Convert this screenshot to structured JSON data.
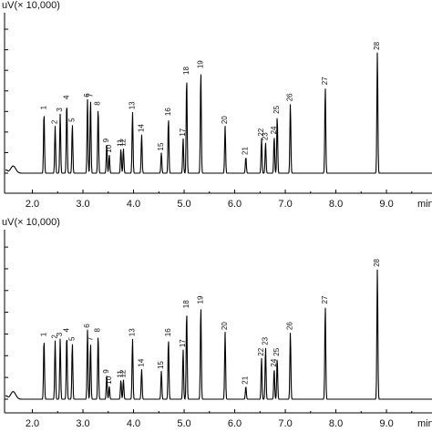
{
  "chart_data": [
    {
      "type": "line",
      "ylabel": "uV(× 10,000)",
      "xlabel": "min",
      "xlim": [
        1.45,
        9.9
      ],
      "ylim": [
        0,
        7.8
      ],
      "xticks": [
        "2.0",
        "3.0",
        "4.0",
        "5.0",
        "6.0",
        "7.0",
        "8.0",
        "9.0"
      ],
      "peaks": [
        {
          "label": "1",
          "rt": 2.23,
          "h": 3.0
        },
        {
          "label": "2",
          "rt": 2.45,
          "h": 2.3
        },
        {
          "label": "3",
          "rt": 2.55,
          "h": 2.9
        },
        {
          "label": "4",
          "rt": 2.68,
          "h": 3.5
        },
        {
          "label": "5",
          "rt": 2.79,
          "h": 2.4
        },
        {
          "label": "6",
          "rt": 3.09,
          "h": 3.6
        },
        {
          "label": "7",
          "rt": 3.15,
          "h": 3.6
        },
        {
          "label": "8",
          "rt": 3.3,
          "h": 3.2
        },
        {
          "label": "9",
          "rt": 3.47,
          "h": 1.4
        },
        {
          "label": "10",
          "rt": 3.52,
          "h": 0.9
        },
        {
          "label": "11",
          "rt": 3.75,
          "h": 1.2
        },
        {
          "label": "12",
          "rt": 3.8,
          "h": 1.2
        },
        {
          "label": "13",
          "rt": 3.98,
          "h": 3.0
        },
        {
          "label": "14",
          "rt": 4.16,
          "h": 1.9
        },
        {
          "label": "15",
          "rt": 4.55,
          "h": 1.0
        },
        {
          "label": "16",
          "rt": 4.69,
          "h": 2.7
        },
        {
          "label": "17",
          "rt": 4.98,
          "h": 1.7
        },
        {
          "label": "18",
          "rt": 5.05,
          "h": 4.7
        },
        {
          "label": "19",
          "rt": 5.33,
          "h": 5.0
        },
        {
          "label": "20",
          "rt": 5.81,
          "h": 2.3
        },
        {
          "label": "21",
          "rt": 6.22,
          "h": 0.8
        },
        {
          "label": "22",
          "rt": 6.53,
          "h": 1.7
        },
        {
          "label": "23",
          "rt": 6.61,
          "h": 1.5
        },
        {
          "label": "24",
          "rt": 6.78,
          "h": 1.8
        },
        {
          "label": "25",
          "rt": 6.84,
          "h": 2.8
        },
        {
          "label": "26",
          "rt": 7.1,
          "h": 3.4
        },
        {
          "label": "27",
          "rt": 7.79,
          "h": 4.2
        },
        {
          "label": "28",
          "rt": 8.82,
          "h": 5.9
        }
      ]
    },
    {
      "type": "line",
      "ylabel": "uV(× 10,000)",
      "xlabel": "min",
      "xlim": [
        1.45,
        9.9
      ],
      "ylim": [
        0,
        7.8
      ],
      "xticks": [
        "2.0",
        "3.0",
        "4.0",
        "5.0",
        "6.0",
        "7.0",
        "8.0",
        "9.0"
      ],
      "peaks": [
        {
          "label": "1",
          "rt": 2.23,
          "h": 2.8
        },
        {
          "label": "2",
          "rt": 2.45,
          "h": 2.7
        },
        {
          "label": "3",
          "rt": 2.55,
          "h": 2.8
        },
        {
          "label": "4",
          "rt": 2.68,
          "h": 3.0
        },
        {
          "label": "5",
          "rt": 2.79,
          "h": 2.6
        },
        {
          "label": "6",
          "rt": 3.09,
          "h": 3.2
        },
        {
          "label": "7",
          "rt": 3.15,
          "h": 2.6
        },
        {
          "label": "8",
          "rt": 3.3,
          "h": 3.0
        },
        {
          "label": "9",
          "rt": 3.47,
          "h": 1.1
        },
        {
          "label": "10",
          "rt": 3.52,
          "h": 0.6
        },
        {
          "label": "11",
          "rt": 3.75,
          "h": 0.9
        },
        {
          "label": "12",
          "rt": 3.8,
          "h": 0.9
        },
        {
          "label": "13",
          "rt": 3.98,
          "h": 2.8
        },
        {
          "label": "14",
          "rt": 4.16,
          "h": 1.4
        },
        {
          "label": "15",
          "rt": 4.55,
          "h": 1.3
        },
        {
          "label": "16",
          "rt": 4.69,
          "h": 2.8
        },
        {
          "label": "17",
          "rt": 4.98,
          "h": 2.3
        },
        {
          "label": "18",
          "rt": 5.05,
          "h": 4.1
        },
        {
          "label": "19",
          "rt": 5.33,
          "h": 4.3
        },
        {
          "label": "20",
          "rt": 5.81,
          "h": 3.1
        },
        {
          "label": "21",
          "rt": 6.22,
          "h": 0.6
        },
        {
          "label": "22",
          "rt": 6.53,
          "h": 1.9
        },
        {
          "label": "23",
          "rt": 6.61,
          "h": 2.4
        },
        {
          "label": "24",
          "rt": 6.78,
          "h": 1.4
        },
        {
          "label": "25",
          "rt": 6.84,
          "h": 1.9
        },
        {
          "label": "26",
          "rt": 7.1,
          "h": 3.1
        },
        {
          "label": "27",
          "rt": 7.79,
          "h": 4.3
        },
        {
          "label": "28",
          "rt": 8.82,
          "h": 6.0
        }
      ]
    }
  ]
}
